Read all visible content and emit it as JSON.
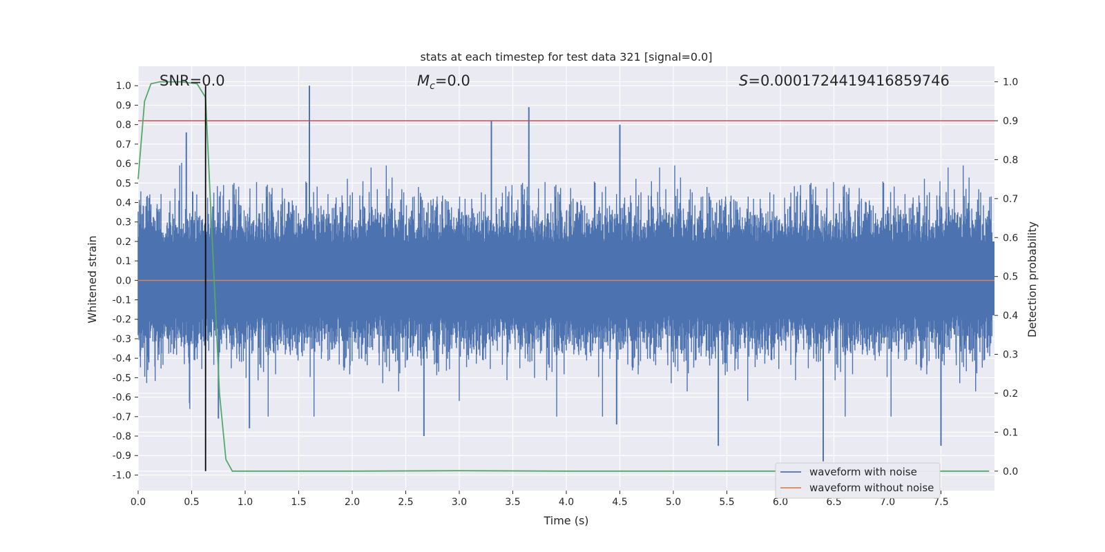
{
  "chart_data": {
    "type": "line",
    "title": "stats at each timestep for test data 321 [signal=0.0]",
    "xlabel": "Time (s)",
    "ylabel": "Whitened strain",
    "y2label": "Detection probability",
    "xlim": [
      0.0,
      8.0
    ],
    "ylim": [
      -1.08,
      1.1
    ],
    "y2lim": [
      -0.05,
      1.04
    ],
    "xticks": [
      0.0,
      0.5,
      1.0,
      1.5,
      2.0,
      2.5,
      3.0,
      3.5,
      4.0,
      4.5,
      5.0,
      5.5,
      6.0,
      6.5,
      7.0,
      7.5
    ],
    "xtick_labels": [
      "0.0",
      "0.5",
      "1.0",
      "1.5",
      "2.0",
      "2.5",
      "3.0",
      "3.5",
      "4.0",
      "4.5",
      "5.0",
      "5.5",
      "6.0",
      "6.5",
      "7.0",
      "7.5"
    ],
    "yticks": [
      1.0,
      0.9,
      0.8,
      0.7,
      0.6,
      0.5,
      0.4,
      0.3,
      0.2,
      0.1,
      0.0,
      -0.1,
      -0.2,
      -0.3,
      -0.4,
      -0.5,
      -0.6,
      -0.7,
      -0.8,
      -0.9,
      -1.0
    ],
    "ytick_labels": [
      "1.0",
      "0.9",
      "0.8",
      "0.7",
      "0.6",
      "0.5",
      "0.4",
      "0.3",
      "0.2",
      "0.1",
      "0.0",
      "-0.1",
      "-0.2",
      "-0.3",
      "-0.4",
      "-0.5",
      "-0.6",
      "-0.7",
      "-0.8",
      "-0.9",
      "-1.0"
    ],
    "y2ticks": [
      1.0,
      0.9,
      0.8,
      0.7,
      0.6,
      0.5,
      0.4,
      0.3,
      0.2,
      0.1,
      0.0
    ],
    "y2tick_labels": [
      "1.0",
      "0.9",
      "0.8",
      "0.7",
      "0.6",
      "0.5",
      "0.4",
      "0.3",
      "0.2",
      "0.1",
      "0.0"
    ],
    "annotations": {
      "snr_text": "SNR=0.0",
      "mc_symbol": "M",
      "mc_sub": "c",
      "mc_value": "=0.0",
      "s_symbol": "S",
      "s_value": "=0.0001724419416859746"
    },
    "legend": {
      "location": "lower-right",
      "entries": [
        "waveform with noise",
        "waveform without noise"
      ]
    },
    "series": [
      {
        "name": "waveform with noise",
        "axis": "left",
        "color": "#4c72b0",
        "style": "dense noise, amplitude mostly within ±0.45 with spikes",
        "spikes": [
          {
            "x": 1.6,
            "y": 1.0
          },
          {
            "x": 3.65,
            "y": 0.89
          },
          {
            "x": 3.3,
            "y": 0.82
          },
          {
            "x": 4.5,
            "y": 0.8
          },
          {
            "x": 0.45,
            "y": 0.76
          },
          {
            "x": 6.4,
            "y": -0.93
          },
          {
            "x": 5.42,
            "y": -0.85
          },
          {
            "x": 7.5,
            "y": -0.85
          },
          {
            "x": 2.67,
            "y": -0.8
          },
          {
            "x": 1.04,
            "y": -0.76
          },
          {
            "x": 0.75,
            "y": -0.71
          },
          {
            "x": 4.47,
            "y": -0.74
          }
        ]
      },
      {
        "name": "waveform without noise",
        "axis": "left",
        "color": "#dd8452",
        "y_constant": 0.0
      },
      {
        "name": "detection probability",
        "axis": "right",
        "color": "#55a868",
        "x": [
          0.0,
          0.06,
          0.12,
          0.2,
          0.3,
          0.4,
          0.55,
          0.63,
          0.7,
          0.76,
          0.82,
          0.88,
          1.0,
          2.0,
          3.0,
          4.0,
          5.0,
          6.0,
          7.0,
          7.95
        ],
        "y": [
          0.75,
          0.95,
          0.995,
          1.0,
          1.0,
          1.0,
          0.995,
          0.96,
          0.55,
          0.2,
          0.03,
          0.0,
          0.0,
          0.0,
          0.001,
          0.0,
          0.0,
          0.0,
          0.0,
          0.0
        ]
      },
      {
        "name": "threshold",
        "axis": "right",
        "color": "#c44e52",
        "y_constant": 0.9
      },
      {
        "name": "detection time marker",
        "axis": "left",
        "color": "#000000",
        "x_constant": 0.63,
        "y_range": [
          -0.98,
          1.0
        ]
      }
    ]
  }
}
